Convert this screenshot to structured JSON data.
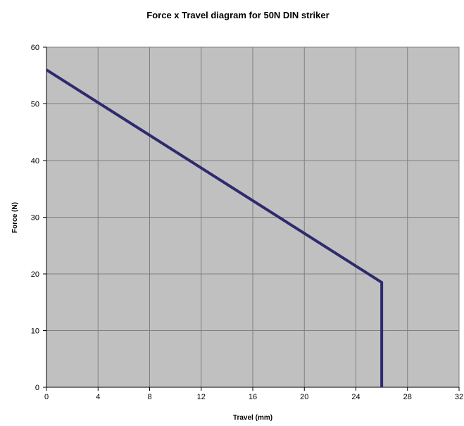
{
  "chart_data": {
    "type": "line",
    "title": "Force x Travel diagram for 50N DIN striker",
    "xlabel": "Travel (mm)",
    "ylabel": "Force (N)",
    "xlim": [
      0,
      32
    ],
    "ylim": [
      0,
      60
    ],
    "xticks": [
      "0",
      "4",
      "8",
      "12",
      "16",
      "20",
      "24",
      "28",
      "32"
    ],
    "yticks": [
      "0",
      "10",
      "20",
      "30",
      "40",
      "50",
      "60"
    ],
    "grid": true,
    "legend": "none",
    "series": [
      {
        "color": "#2e2a6e",
        "points": [
          {
            "x": 0,
            "y": 56
          },
          {
            "x": 26,
            "y": 18.5
          },
          {
            "x": 26,
            "y": 0
          }
        ]
      }
    ],
    "colors": {
      "plot_background": "#c0c0c0",
      "grid": "#7f7f7f",
      "line": "#2e2a6e"
    }
  }
}
